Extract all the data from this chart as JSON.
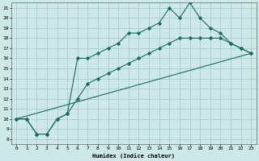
{
  "xlabel": "Humidex (Indice chaleur)",
  "bg_color": "#cce8e8",
  "grid_color": "#aacccc",
  "line_color": "#1a6b60",
  "xlim": [
    -0.5,
    23.5
  ],
  "ylim": [
    7.5,
    21.5
  ],
  "xticks": [
    0,
    1,
    2,
    3,
    4,
    5,
    6,
    7,
    8,
    9,
    10,
    11,
    12,
    13,
    14,
    15,
    16,
    17,
    18,
    19,
    20,
    21,
    22,
    23
  ],
  "yticks": [
    8,
    9,
    10,
    11,
    12,
    13,
    14,
    15,
    16,
    17,
    18,
    19,
    20,
    21
  ],
  "line1": {
    "x": [
      0,
      1,
      2,
      3,
      4,
      5,
      6,
      7,
      8,
      9,
      10,
      11,
      12,
      13,
      14,
      15,
      16,
      17,
      18,
      19,
      20,
      21,
      22,
      23
    ],
    "y": [
      10,
      10,
      8.5,
      8.5,
      10,
      10.5,
      16,
      16,
      16.5,
      17,
      17.5,
      18.5,
      18.5,
      19,
      19.5,
      21,
      20,
      21.5,
      20,
      19,
      18.5,
      17.5,
      17,
      16.5
    ]
  },
  "line2": {
    "x": [
      0,
      1,
      2,
      3,
      4,
      5,
      6,
      7,
      8,
      9,
      10,
      11,
      12,
      13,
      14,
      15,
      16,
      17,
      18,
      19,
      20,
      21,
      22,
      23
    ],
    "y": [
      10,
      10,
      8.5,
      8.5,
      10,
      10.5,
      12,
      13.5,
      14,
      14.5,
      15,
      15.5,
      16,
      16.5,
      17,
      17.5,
      18,
      18,
      18,
      18,
      18,
      17.5,
      17,
      16.5
    ]
  },
  "line3": {
    "x": [
      0,
      23
    ],
    "y": [
      10,
      16.5
    ]
  }
}
